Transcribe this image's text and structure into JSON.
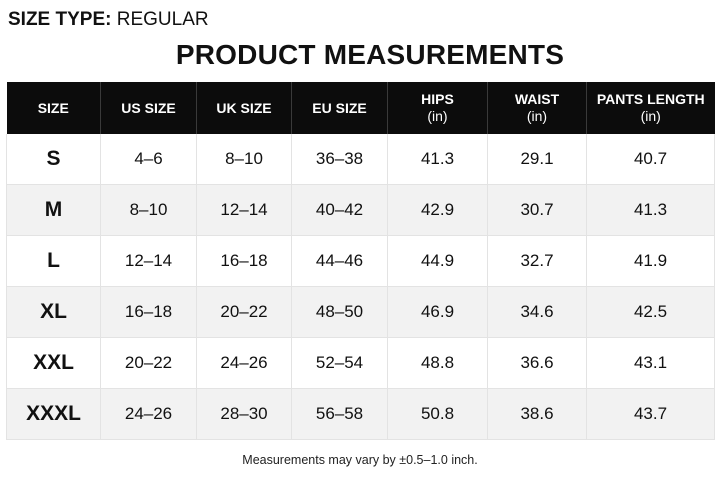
{
  "size_type": {
    "label": "SIZE TYPE:",
    "value": "REGULAR"
  },
  "title": "PRODUCT MEASUREMENTS",
  "table": {
    "headers": [
      {
        "label": "SIZE",
        "unit": ""
      },
      {
        "label": "US SIZE",
        "unit": ""
      },
      {
        "label": "UK SIZE",
        "unit": ""
      },
      {
        "label": "EU SIZE",
        "unit": ""
      },
      {
        "label": "HIPS",
        "unit": "(in)"
      },
      {
        "label": "WAIST",
        "unit": "(in)"
      },
      {
        "label": "PANTS LENGTH",
        "unit": "(in)"
      }
    ],
    "rows": [
      {
        "size": "S",
        "us": "4–6",
        "uk": "8–10",
        "eu": "36–38",
        "hips": "41.3",
        "waist": "29.1",
        "pants_length": "40.7"
      },
      {
        "size": "M",
        "us": "8–10",
        "uk": "12–14",
        "eu": "40–42",
        "hips": "42.9",
        "waist": "30.7",
        "pants_length": "41.3"
      },
      {
        "size": "L",
        "us": "12–14",
        "uk": "16–18",
        "eu": "44–46",
        "hips": "44.9",
        "waist": "32.7",
        "pants_length": "41.9"
      },
      {
        "size": "XL",
        "us": "16–18",
        "uk": "20–22",
        "eu": "48–50",
        "hips": "46.9",
        "waist": "34.6",
        "pants_length": "42.5"
      },
      {
        "size": "XXL",
        "us": "20–22",
        "uk": "24–26",
        "eu": "52–54",
        "hips": "48.8",
        "waist": "36.6",
        "pants_length": "43.1"
      },
      {
        "size": "XXXL",
        "us": "24–26",
        "uk": "28–30",
        "eu": "56–58",
        "hips": "50.8",
        "waist": "38.6",
        "pants_length": "43.7"
      }
    ]
  },
  "footnote": "Measurements may vary by ±0.5–1.0 inch.",
  "colors": {
    "header_background": "#0c0c0c",
    "header_text": "#ffffff",
    "row_alt_background": "#f2f2f2",
    "text": "#111111"
  }
}
